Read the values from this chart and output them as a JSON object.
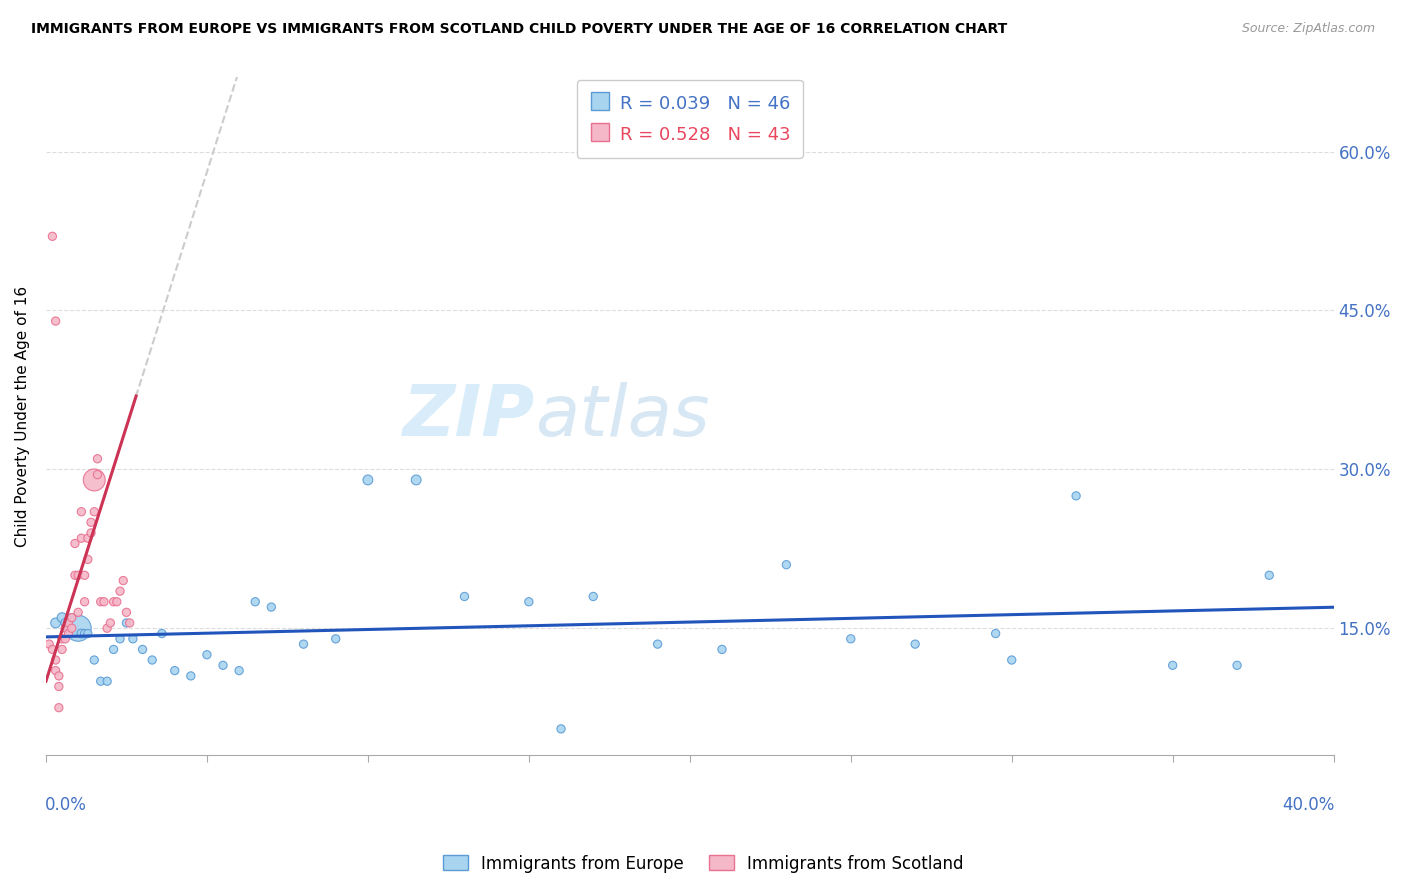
{
  "title": "IMMIGRANTS FROM EUROPE VS IMMIGRANTS FROM SCOTLAND CHILD POVERTY UNDER THE AGE OF 16 CORRELATION CHART",
  "source": "Source: ZipAtlas.com",
  "ylabel": "Child Poverty Under the Age of 16",
  "yticks": [
    0.15,
    0.3,
    0.45,
    0.6
  ],
  "ytick_labels": [
    "15.0%",
    "30.0%",
    "45.0%",
    "60.0%"
  ],
  "xlim": [
    0.0,
    0.4
  ],
  "ylim": [
    0.03,
    0.67
  ],
  "legend_r_europe": "R = 0.039",
  "legend_n_europe": "N = 46",
  "legend_r_scotland": "R = 0.528",
  "legend_n_scotland": "N = 43",
  "legend_label_europe": "Immigrants from Europe",
  "legend_label_scotland": "Immigrants from Scotland",
  "color_europe": "#A8D4F0",
  "color_scotland": "#F5B8C8",
  "color_europe_edge": "#5B9BD5",
  "color_scotland_edge": "#E87090",
  "color_trendline_europe": "#2255BB",
  "color_trendline_scotland": "#CC3355",
  "watermark_zip": "ZIP",
  "watermark_atlas": "atlas",
  "europe_x": [
    0.003,
    0.005,
    0.006,
    0.007,
    0.008,
    0.009,
    0.01,
    0.011,
    0.012,
    0.013,
    0.015,
    0.017,
    0.019,
    0.021,
    0.023,
    0.025,
    0.027,
    0.03,
    0.033,
    0.036,
    0.04,
    0.045,
    0.05,
    0.055,
    0.06,
    0.065,
    0.07,
    0.08,
    0.09,
    0.1,
    0.115,
    0.13,
    0.15,
    0.17,
    0.19,
    0.21,
    0.23,
    0.25,
    0.27,
    0.3,
    0.32,
    0.35,
    0.37,
    0.38,
    0.295,
    0.16
  ],
  "europe_y": [
    0.155,
    0.16,
    0.155,
    0.15,
    0.16,
    0.145,
    0.15,
    0.145,
    0.145,
    0.145,
    0.12,
    0.1,
    0.1,
    0.13,
    0.14,
    0.155,
    0.14,
    0.13,
    0.12,
    0.145,
    0.11,
    0.105,
    0.125,
    0.115,
    0.11,
    0.175,
    0.17,
    0.135,
    0.14,
    0.29,
    0.29,
    0.18,
    0.175,
    0.18,
    0.135,
    0.13,
    0.21,
    0.14,
    0.135,
    0.12,
    0.275,
    0.115,
    0.115,
    0.2,
    0.145,
    0.055
  ],
  "europe_size": [
    50,
    50,
    40,
    35,
    35,
    35,
    350,
    40,
    35,
    35,
    35,
    35,
    35,
    35,
    35,
    35,
    35,
    35,
    35,
    35,
    35,
    35,
    35,
    35,
    35,
    35,
    35,
    35,
    35,
    50,
    50,
    35,
    35,
    35,
    35,
    35,
    35,
    35,
    35,
    35,
    35,
    35,
    35,
    35,
    35,
    35
  ],
  "scotland_x": [
    0.001,
    0.002,
    0.003,
    0.003,
    0.004,
    0.004,
    0.005,
    0.005,
    0.006,
    0.006,
    0.007,
    0.007,
    0.008,
    0.008,
    0.009,
    0.009,
    0.01,
    0.01,
    0.011,
    0.011,
    0.012,
    0.012,
    0.013,
    0.013,
    0.014,
    0.014,
    0.015,
    0.015,
    0.016,
    0.016,
    0.017,
    0.018,
    0.019,
    0.02,
    0.021,
    0.022,
    0.023,
    0.024,
    0.025,
    0.026,
    0.002,
    0.003,
    0.004
  ],
  "scotland_y": [
    0.135,
    0.13,
    0.12,
    0.11,
    0.105,
    0.095,
    0.14,
    0.13,
    0.15,
    0.14,
    0.155,
    0.145,
    0.16,
    0.15,
    0.23,
    0.2,
    0.165,
    0.2,
    0.235,
    0.26,
    0.2,
    0.175,
    0.215,
    0.235,
    0.25,
    0.24,
    0.26,
    0.29,
    0.295,
    0.31,
    0.175,
    0.175,
    0.15,
    0.155,
    0.175,
    0.175,
    0.185,
    0.195,
    0.165,
    0.155,
    0.52,
    0.44,
    0.075
  ],
  "scotland_size": [
    35,
    35,
    35,
    35,
    35,
    35,
    35,
    35,
    35,
    35,
    35,
    35,
    35,
    35,
    35,
    35,
    35,
    35,
    35,
    35,
    35,
    35,
    35,
    35,
    35,
    35,
    35,
    250,
    35,
    35,
    35,
    35,
    35,
    35,
    35,
    35,
    35,
    35,
    35,
    35,
    35,
    35,
    35
  ]
}
